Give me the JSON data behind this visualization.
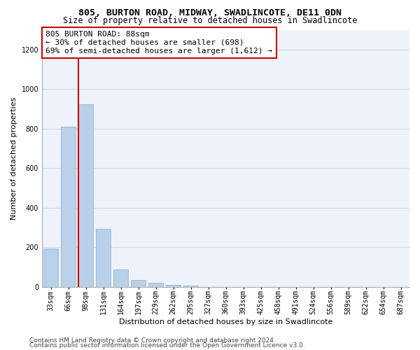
{
  "title": "805, BURTON ROAD, MIDWAY, SWADLINCOTE, DE11 0DN",
  "subtitle": "Size of property relative to detached houses in Swadlincote",
  "xlabel": "Distribution of detached houses by size in Swadlincote",
  "ylabel": "Number of detached properties",
  "categories": [
    "33sqm",
    "66sqm",
    "98sqm",
    "131sqm",
    "164sqm",
    "197sqm",
    "229sqm",
    "262sqm",
    "295sqm",
    "327sqm",
    "360sqm",
    "393sqm",
    "425sqm",
    "458sqm",
    "491sqm",
    "524sqm",
    "556sqm",
    "589sqm",
    "622sqm",
    "654sqm",
    "687sqm"
  ],
  "values": [
    195,
    810,
    925,
    295,
    88,
    35,
    20,
    12,
    8,
    0,
    0,
    0,
    0,
    0,
    0,
    0,
    0,
    0,
    0,
    0,
    0
  ],
  "bar_color": "#b8d0e8",
  "grid_color": "#d0d8e8",
  "bg_color": "#eef2fa",
  "annotation_box_color": "#cc0000",
  "annotation_line1": "805 BURTON ROAD: 88sqm",
  "annotation_line2": "← 30% of detached houses are smaller (698)",
  "annotation_line3": "69% of semi-detached houses are larger (1,612) →",
  "property_bin_index": 2,
  "ylim": [
    0,
    1300
  ],
  "yticks": [
    0,
    200,
    400,
    600,
    800,
    1000,
    1200
  ],
  "footer_line1": "Contains HM Land Registry data © Crown copyright and database right 2024.",
  "footer_line2": "Contains public sector information licensed under the Open Government Licence v3.0.",
  "title_fontsize": 9.5,
  "subtitle_fontsize": 8.5,
  "tick_fontsize": 7,
  "ylabel_fontsize": 8,
  "xlabel_fontsize": 8,
  "annotation_fontsize": 8,
  "footer_fontsize": 6.5
}
